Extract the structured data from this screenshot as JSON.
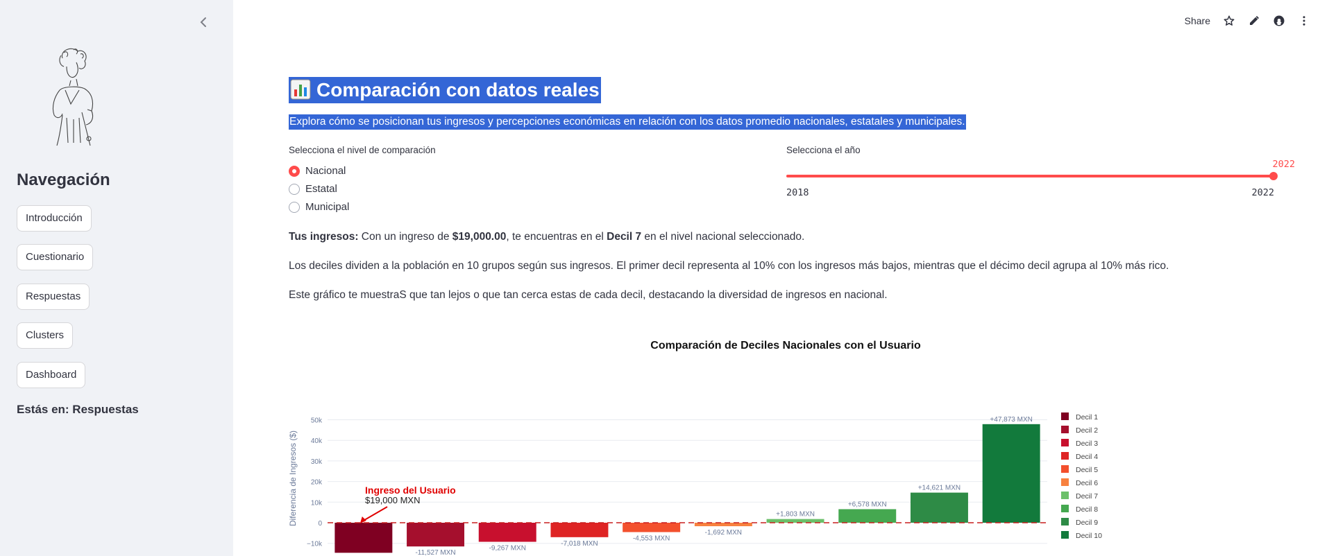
{
  "sidebar": {
    "nav_title": "Navegación",
    "items": [
      {
        "label": "Introducción"
      },
      {
        "label": "Cuestionario"
      },
      {
        "label": "Respuestas"
      },
      {
        "label": "Clusters"
      },
      {
        "label": "Dashboard"
      }
    ],
    "status": "Estás en: Respuestas"
  },
  "toolbar": {
    "share_label": "Share",
    "icons": [
      "star-icon",
      "pencil-icon",
      "github-icon",
      "more-vertical-icon"
    ]
  },
  "main": {
    "title": "Comparación con datos reales",
    "title_icon": "bar-chart-icon",
    "subtitle": "Explora cómo se posicionan tus ingresos y percepciones económicas en relación con los datos promedio nacionales, estatales y municipales.",
    "radio": {
      "label": "Selecciona el nivel de comparación",
      "options": [
        "Nacional",
        "Estatal",
        "Municipal"
      ],
      "selected": "Nacional"
    },
    "slider": {
      "label": "Selecciona el año",
      "value": "2022",
      "min": "2018",
      "max": "2022",
      "position": 1.0
    },
    "para1": {
      "lead": "Tus ingresos:",
      "t1": " Con un ingreso de ",
      "amount": "$19,000.00",
      "t2": ", te encuentras en el ",
      "decil": "Decil 7",
      "t3": " en el nivel nacional seleccionado."
    },
    "para2": "Los deciles dividen a la población en 10 grupos según sus ingresos. El primer decil representa al 10% con los ingresos más bajos, mientras que el décimo decil agrupa al 10% más rico.",
    "para3": "Este gráfico te muestraS que tan lejos o que tan cerca estas de cada decil, destacando la diversidad de ingresos en nacional."
  },
  "chart_data": {
    "type": "bar",
    "title": "Comparación de Deciles Nacionales con el Usuario",
    "ylabel": "Diferencia de Ingresos ($)",
    "xlabel": "",
    "ylim": [
      -15000,
      50000
    ],
    "yticks": [
      -10000,
      0,
      10000,
      20000,
      30000,
      40000,
      50000
    ],
    "ytick_labels": [
      "−10k",
      "0",
      "10k",
      "20k",
      "30k",
      "40k",
      "50k"
    ],
    "grid": true,
    "legend_position": "right",
    "categories": [
      "Decil 1",
      "Decil 2",
      "Decil 3",
      "Decil 4",
      "Decil 5",
      "Decil 6",
      "Decil 7",
      "Decil 8",
      "Decil 9",
      "Decil 10"
    ],
    "values": [
      -14600,
      -11527,
      -9267,
      -7018,
      -4553,
      -1692,
      1803,
      6578,
      14621,
      47873
    ],
    "labels": [
      "",
      "-11,527 MXN",
      "-9,267 MXN",
      "-7,018 MXN",
      "-4,553 MXN",
      "-1,692 MXN",
      "+1,803 MXN",
      "+6,578 MXN",
      "+14,621 MXN",
      "+47,873 MXN"
    ],
    "colors": [
      "#7f0022",
      "#a50f2d",
      "#c8102e",
      "#de2424",
      "#f3502d",
      "#f7813f",
      "#6cc06a",
      "#45a850",
      "#2e8b46",
      "#127a3c"
    ],
    "annotation": {
      "title": "Ingreso del Usuario",
      "text": "$19,000 MXN",
      "color": "#e00000"
    },
    "reference_line_color": "#c81e1e"
  }
}
